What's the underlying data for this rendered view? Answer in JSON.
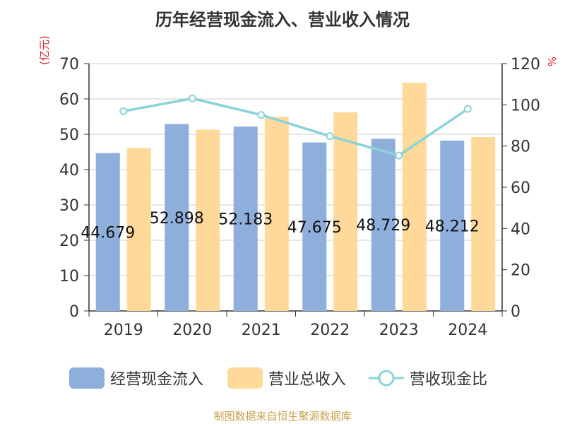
{
  "chart_data": {
    "type": "bar",
    "title": "历年经营现金流入、营业收入情况",
    "left_unit": "(亿元)",
    "right_unit": "%",
    "categories": [
      "2019",
      "2020",
      "2021",
      "2022",
      "2023",
      "2024"
    ],
    "left_axis": {
      "ylim": [
        0,
        70
      ],
      "ticks": [
        "0",
        "10",
        "20",
        "30",
        "40",
        "50",
        "60",
        "70"
      ]
    },
    "right_axis": {
      "ylim": [
        0,
        120
      ],
      "ticks": [
        "0",
        "20",
        "40",
        "60",
        "80",
        "100",
        "120"
      ]
    },
    "grid": true,
    "legend_position": "bottom",
    "series": [
      {
        "name": "经营现金流入",
        "type": "bar",
        "axis": "left",
        "color": "#8eaedb",
        "values": [
          44.679,
          52.898,
          52.183,
          47.675,
          48.729,
          48.212
        ],
        "labels": [
          "44.679",
          "52.898",
          "52.183",
          "47.675",
          "48.729",
          "48.212"
        ]
      },
      {
        "name": "营业总收入",
        "type": "bar",
        "axis": "left",
        "color": "#ffd99a",
        "values": [
          46.1,
          51.3,
          54.9,
          56.2,
          64.6,
          49.2
        ]
      },
      {
        "name": "营收现金比",
        "type": "line",
        "axis": "right",
        "color": "#8ad4d8",
        "values": [
          96.9,
          103.1,
          95.1,
          84.8,
          75.4,
          98.0
        ]
      }
    ]
  },
  "source": "制图数据来自恒生聚源数据库"
}
